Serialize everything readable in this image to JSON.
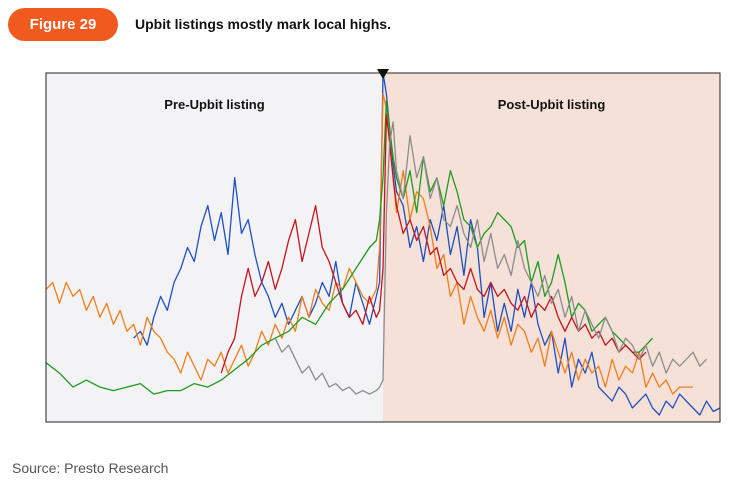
{
  "header": {
    "badge_label": "Figure 29",
    "title": "Upbit listings mostly mark local highs."
  },
  "footer": {
    "source": "Source: Presto Research"
  },
  "colors": {
    "badge": "#f05a1e",
    "pre_region": "#f3f3f5",
    "post_region": "#f5e1d8",
    "marker": "#111111"
  },
  "chart_data": {
    "type": "line",
    "title": "",
    "xlabel": "",
    "ylabel": "",
    "regions": [
      {
        "label": "Pre-Upbit listing",
        "from": 0,
        "to": 100
      },
      {
        "label": "Post-Upbit listing",
        "from": 100,
        "to": 200
      }
    ],
    "listing_x": 100,
    "xlim": [
      0,
      200
    ],
    "ylim": [
      0,
      100
    ],
    "grid": false,
    "legend": "none",
    "series": [
      {
        "color": "#1f4fbf",
        "x": [
          26,
          28,
          30,
          32,
          34,
          36,
          38,
          40,
          42,
          44,
          46,
          48,
          50,
          52,
          54,
          56,
          58,
          60,
          62,
          64,
          66,
          68,
          70,
          72,
          74,
          76,
          78,
          80,
          82,
          84,
          86,
          88,
          90,
          92,
          94,
          96,
          98,
          99,
          100,
          101,
          102,
          103,
          104,
          106,
          108,
          110,
          112,
          114,
          116,
          118,
          120,
          122,
          124,
          126,
          128,
          130,
          132,
          134,
          136,
          138,
          140,
          142,
          144,
          146,
          148,
          150,
          152,
          154,
          156,
          158,
          160,
          162,
          164,
          166,
          168,
          170,
          172,
          174,
          176,
          178,
          180,
          182,
          184,
          186,
          188,
          190,
          192,
          194,
          196,
          198,
          200
        ],
        "y": [
          24,
          26,
          22,
          30,
          36,
          32,
          40,
          44,
          50,
          46,
          56,
          62,
          52,
          60,
          48,
          70,
          54,
          58,
          48,
          40,
          36,
          30,
          34,
          28,
          32,
          36,
          30,
          34,
          40,
          36,
          46,
          34,
          30,
          40,
          34,
          28,
          36,
          40,
          100,
          94,
          84,
          74,
          66,
          62,
          50,
          56,
          46,
          58,
          52,
          62,
          48,
          56,
          42,
          58,
          50,
          30,
          40,
          26,
          34,
          26,
          38,
          30,
          40,
          28,
          22,
          26,
          14,
          24,
          10,
          18,
          14,
          20,
          10,
          8,
          6,
          10,
          8,
          4,
          6,
          8,
          4,
          2,
          6,
          4,
          8,
          6,
          4,
          2,
          6,
          3,
          4
        ]
      },
      {
        "color": "#f07d1a",
        "x": [
          0,
          2,
          4,
          6,
          8,
          10,
          12,
          14,
          16,
          18,
          20,
          22,
          24,
          26,
          28,
          30,
          32,
          34,
          36,
          38,
          40,
          42,
          44,
          46,
          48,
          50,
          52,
          54,
          56,
          58,
          60,
          62,
          64,
          66,
          68,
          70,
          72,
          74,
          76,
          78,
          80,
          82,
          84,
          86,
          88,
          90,
          92,
          94,
          96,
          98,
          99,
          100,
          101,
          102,
          103,
          104,
          106,
          108,
          110,
          112,
          114,
          116,
          118,
          120,
          122,
          124,
          126,
          128,
          130,
          132,
          134,
          136,
          138,
          140,
          142,
          144,
          146,
          148,
          150,
          152,
          154,
          156,
          158,
          160,
          162,
          164,
          166,
          168,
          170,
          172,
          174,
          176,
          178,
          180,
          182,
          184,
          186,
          188,
          190,
          192
        ],
        "y": [
          38,
          40,
          34,
          40,
          36,
          38,
          32,
          36,
          30,
          34,
          28,
          32,
          26,
          28,
          22,
          30,
          26,
          24,
          20,
          18,
          14,
          20,
          16,
          12,
          18,
          16,
          20,
          14,
          18,
          22,
          16,
          20,
          26,
          22,
          28,
          24,
          30,
          26,
          36,
          30,
          38,
          34,
          32,
          40,
          38,
          44,
          40,
          36,
          34,
          38,
          50,
          94,
          90,
          80,
          70,
          60,
          72,
          58,
          66,
          64,
          56,
          44,
          48,
          36,
          40,
          28,
          36,
          30,
          26,
          32,
          24,
          30,
          22,
          28,
          26,
          20,
          24,
          16,
          26,
          20,
          14,
          20,
          12,
          18,
          14,
          16,
          10,
          18,
          12,
          16,
          14,
          20,
          10,
          14,
          10,
          12,
          8,
          10,
          10,
          10
        ]
      },
      {
        "color": "#1e9a1e",
        "x": [
          0,
          4,
          8,
          12,
          16,
          20,
          24,
          28,
          32,
          36,
          40,
          44,
          48,
          52,
          56,
          60,
          64,
          68,
          72,
          76,
          80,
          84,
          88,
          92,
          96,
          98,
          99,
          100,
          101,
          102,
          103,
          104,
          106,
          108,
          110,
          112,
          114,
          116,
          118,
          120,
          122,
          124,
          126,
          128,
          130,
          132,
          134,
          136,
          138,
          140,
          142,
          144,
          146,
          148,
          150,
          152,
          154,
          156,
          158,
          160,
          162,
          164,
          166,
          168,
          170,
          172,
          174,
          176,
          178,
          180
        ],
        "y": [
          17,
          14,
          10,
          12,
          10,
          9,
          10,
          11,
          8,
          9,
          9,
          11,
          10,
          12,
          15,
          18,
          22,
          24,
          26,
          30,
          28,
          34,
          38,
          44,
          50,
          52,
          58,
          70,
          92,
          84,
          76,
          70,
          64,
          72,
          60,
          76,
          66,
          70,
          62,
          72,
          66,
          58,
          56,
          50,
          54,
          56,
          60,
          58,
          56,
          50,
          52,
          40,
          46,
          36,
          40,
          48,
          40,
          30,
          34,
          32,
          26,
          28,
          30,
          26,
          24,
          22,
          20,
          20,
          22,
          24
        ]
      },
      {
        "color": "#c4131b",
        "x": [
          52,
          54,
          56,
          58,
          60,
          62,
          64,
          66,
          68,
          70,
          72,
          74,
          76,
          78,
          80,
          82,
          84,
          86,
          88,
          90,
          92,
          94,
          96,
          98,
          99,
          100,
          101,
          102,
          103,
          104,
          106,
          108,
          110,
          112,
          114,
          116,
          118,
          120,
          122,
          124,
          126,
          128,
          130,
          132,
          134,
          136,
          138,
          140,
          142,
          144,
          146,
          148,
          150,
          152,
          154,
          156,
          158,
          160,
          162,
          164,
          166,
          168,
          170,
          172,
          174,
          176,
          178
        ],
        "y": [
          14,
          20,
          24,
          36,
          44,
          36,
          40,
          46,
          38,
          44,
          52,
          58,
          46,
          54,
          62,
          50,
          46,
          40,
          34,
          30,
          32,
          28,
          36,
          30,
          32,
          44,
          88,
          80,
          70,
          62,
          54,
          58,
          52,
          56,
          48,
          50,
          42,
          44,
          40,
          38,
          44,
          38,
          36,
          40,
          36,
          38,
          34,
          32,
          36,
          30,
          34,
          32,
          36,
          30,
          26,
          30,
          26,
          28,
          24,
          26,
          22,
          24,
          20,
          22,
          20,
          18,
          20
        ]
      },
      {
        "color": "#8c8c8c",
        "x": [
          68,
          70,
          72,
          74,
          76,
          78,
          80,
          82,
          84,
          86,
          88,
          90,
          92,
          94,
          96,
          98,
          99,
          100,
          101,
          102,
          103,
          104,
          106,
          108,
          110,
          112,
          114,
          116,
          118,
          120,
          122,
          124,
          126,
          128,
          130,
          132,
          134,
          136,
          138,
          140,
          142,
          144,
          146,
          148,
          150,
          152,
          154,
          156,
          158,
          160,
          162,
          164,
          166,
          168,
          170,
          172,
          174,
          176,
          178,
          180,
          182,
          184,
          186,
          188,
          190,
          192,
          194,
          196
        ],
        "y": [
          24,
          20,
          22,
          18,
          14,
          16,
          12,
          14,
          10,
          11,
          9,
          10,
          8,
          9,
          8,
          9,
          10,
          12,
          60,
          80,
          86,
          72,
          64,
          82,
          70,
          76,
          64,
          70,
          58,
          56,
          62,
          54,
          50,
          58,
          46,
          54,
          44,
          48,
          42,
          52,
          44,
          40,
          36,
          42,
          34,
          38,
          30,
          36,
          26,
          32,
          28,
          24,
          30,
          26,
          20,
          24,
          22,
          18,
          22,
          16,
          20,
          14,
          18,
          16,
          18,
          20,
          16,
          18
        ]
      }
    ]
  }
}
